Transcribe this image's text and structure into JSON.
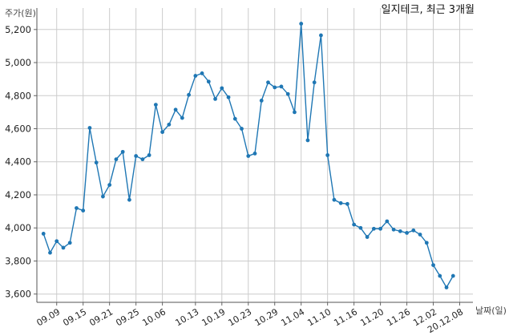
{
  "chart_data": {
    "type": "line",
    "title": "일지테크, 최근 3개월",
    "ylabel": "주가(원)",
    "xlabel": "날짜(일)",
    "ylim": [
      3550,
      5330
    ],
    "y_ticks": [
      3600,
      3800,
      4000,
      4200,
      4400,
      4600,
      4800,
      5000,
      5200
    ],
    "y_tick_labels": [
      "3,600",
      "3,800",
      "4,000",
      "4,200",
      "4,400",
      "4,600",
      "4,800",
      "5,000",
      "5,200"
    ],
    "x_tick_labels": [
      "09.09",
      "09.15",
      "09.21",
      "09.25",
      "10.06",
      "10.13",
      "10.19",
      "10.23",
      "10.29",
      "11.04",
      "11.10",
      "11.16",
      "11.20",
      "11.26",
      "12.02",
      "20.12.08"
    ],
    "x_tick_index": [
      3,
      7,
      11,
      15,
      19,
      24,
      28,
      32,
      36,
      40,
      44,
      48,
      52,
      56,
      60,
      64
    ],
    "grid": true,
    "color": "#1f77b4",
    "series": [
      {
        "values": [
          3965,
          3850,
          3920,
          3880,
          3910,
          4120,
          4105,
          4605,
          4395,
          4190,
          4260,
          4415,
          4460,
          4170,
          4435,
          4415,
          4440,
          4745,
          4580,
          4625,
          4715,
          4665,
          4805,
          4920,
          4935,
          4885,
          4780,
          4845,
          4790,
          4660,
          4600,
          4435,
          4450,
          4770,
          4880,
          4850,
          4855,
          4810,
          4700,
          5235,
          4530,
          4880,
          5165,
          4440,
          4170,
          4150,
          4145,
          4020,
          4000,
          3945,
          3995,
          3995,
          4040,
          3990,
          3980,
          3970,
          3985,
          3960,
          3910,
          3775,
          3710,
          3640,
          3710
        ]
      }
    ]
  }
}
